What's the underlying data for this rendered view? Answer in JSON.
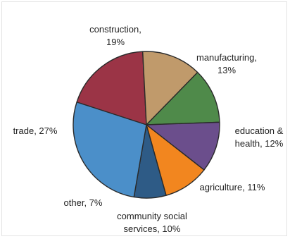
{
  "chart_data": {
    "type": "pie",
    "slices": [
      {
        "label": [
          "construction,",
          "19%"
        ],
        "category": "construction",
        "value": 19,
        "color": "#9b3446"
      },
      {
        "label": [
          "manufacturing,",
          "13%"
        ],
        "category": "manufacturing",
        "value": 13,
        "color": "#c09a6b"
      },
      {
        "label": [
          "education &",
          "health, 12%"
        ],
        "category": "education & health",
        "value": 12,
        "color": "#4f8a4a"
      },
      {
        "label": [
          "agriculture, 11%"
        ],
        "category": "agriculture",
        "value": 11,
        "color": "#6b4e8c"
      },
      {
        "label": [
          "community social",
          "services, 10%"
        ],
        "category": "community social services",
        "value": 10,
        "color": "#f2861f"
      },
      {
        "label": [
          "other, 7%"
        ],
        "category": "other",
        "value": 7,
        "color": "#2e5b86"
      },
      {
        "label": [
          "trade, 27%"
        ],
        "category": "trade",
        "value": 27,
        "color": "#4b8fc9"
      }
    ]
  }
}
